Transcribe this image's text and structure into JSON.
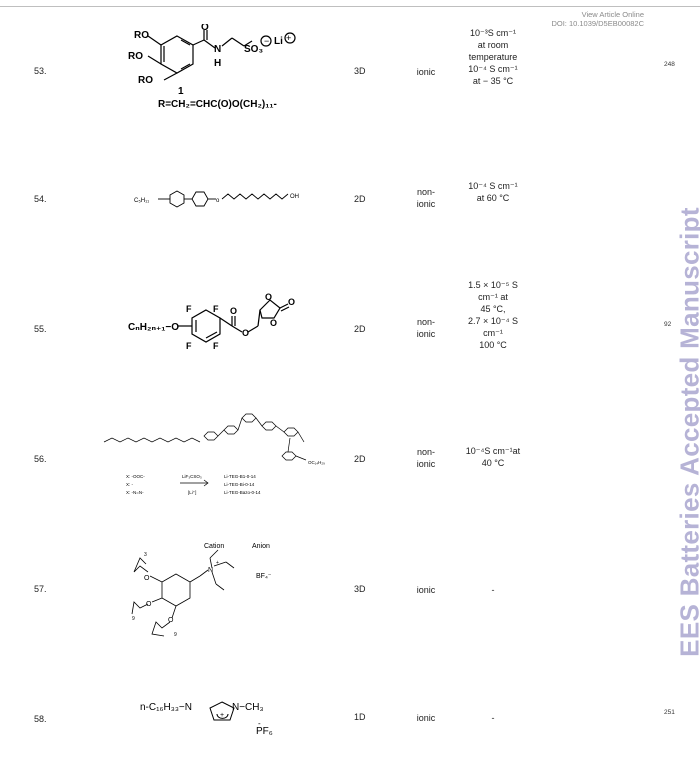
{
  "header": {
    "line1": "View Article Online",
    "line2": "DOI: 10.1039/D5EB00082C"
  },
  "watermark": "EES Batteries Accepted Manuscript",
  "rows": [
    {
      "num": "53.",
      "dim": "3D",
      "type": "ionic",
      "cond": [
        "10⁻³S cm⁻¹",
        "at room",
        "temperature",
        "10⁻⁴ S cm⁻¹",
        "at − 35 °C"
      ],
      "ref": "248",
      "struct": {
        "ro1": "RO",
        "ro2": "RO",
        "ro3": "RO",
        "o": "O",
        "n": "N",
        "h": "H",
        "so3": "SO₃",
        "li": "Li",
        "compound": "1",
        "formula": "R=CH₂=CHC(O)O(CH₂)₁₁-"
      }
    },
    {
      "num": "54.",
      "dim": "2D",
      "type": "non-\nionic",
      "cond": [
        "10⁻⁴ S cm⁻¹",
        "at 60 °C"
      ],
      "ref": "",
      "struct": {
        "alkyl": "C₅H₁₁",
        "oh": "OH"
      }
    },
    {
      "num": "55.",
      "dim": "2D",
      "type": "non-\nionic",
      "cond": [
        "1.5 × 10⁻⁵ S",
        "cm⁻¹ at",
        "45 °C,",
        "2.7 × 10⁻⁴ S",
        "cm⁻¹",
        "100 °C"
      ],
      "ref": "92",
      "struct": {
        "alkyl": "CₙH₂ₙ₊₁−O",
        "f": "F",
        "o": "O"
      }
    },
    {
      "num": "56.",
      "dim": "2D",
      "type": "non-\nionic",
      "cond": [
        "10⁻⁴S cm⁻¹at",
        "40 °C"
      ],
      "ref": "",
      "struct": {
        "x1": "X: -OOC-",
        "x2": "X: -",
        "x3": "X: -N=N-",
        "salt": "LiF₃CSO₃",
        "ratio": "[Li⁺]",
        "p1": "Li-TEG-B1-0-14",
        "p2": "Li-TEG-Bi-0-14",
        "p3": "Li-TEG-Bazo-0-14",
        "tail": "OC₁₄H₂₉"
      }
    },
    {
      "num": "57.",
      "dim": "3D",
      "type": "ionic",
      "cond": [
        "-"
      ],
      "ref": "",
      "struct": {
        "cation": "Cation",
        "anion": "Anion",
        "n": "N",
        "o": "O",
        "bf4": "BF₄⁻",
        "n3": "3",
        "n9": "9"
      }
    },
    {
      "num": "58.",
      "dim": "1D",
      "type": "ionic",
      "cond": [
        "-"
      ],
      "ref": "251",
      "struct": {
        "alkyl": "n-C₁₆H₃₃−N",
        "n2": "N−CH₃",
        "plus": "+",
        "pf6": "PF₆",
        "minus": "-"
      }
    }
  ]
}
